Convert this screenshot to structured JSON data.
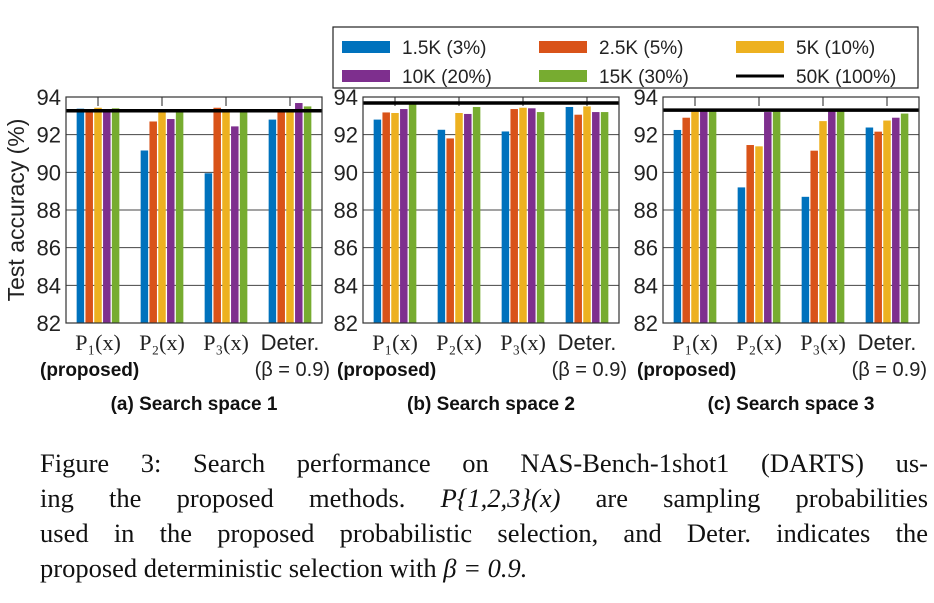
{
  "chart_data": [
    {
      "type": "bar",
      "title": "(a) Search space 1",
      "ylabel": "Test accuracy (%)",
      "ylim": [
        82,
        94
      ],
      "yticks": [
        82,
        84,
        86,
        88,
        90,
        92,
        94
      ],
      "grid": true,
      "categories": [
        "P₁(x)",
        "P₂(x)",
        "P₃(x)",
        "Deter."
      ],
      "category_notes": [
        "(proposed)",
        "",
        "",
        "(β = 0.9)"
      ],
      "series": [
        {
          "name": "1.5K (3%)",
          "values": [
            93.38,
            91.16,
            89.95,
            92.8
          ]
        },
        {
          "name": "2.5K (5%)",
          "values": [
            93.36,
            92.7,
            93.43,
            93.36
          ]
        },
        {
          "name": "5K (10%)",
          "values": [
            93.43,
            93.36,
            93.36,
            93.3
          ]
        },
        {
          "name": "10K (20%)",
          "values": [
            93.36,
            92.83,
            92.44,
            93.68
          ]
        },
        {
          "name": "15K (30%)",
          "values": [
            93.4,
            93.3,
            93.3,
            93.5
          ]
        }
      ],
      "reference_line": {
        "name": "50K (100%)",
        "value": 93.27
      }
    },
    {
      "type": "bar",
      "title": "(b) Search space 2",
      "ylim": [
        82,
        94
      ],
      "yticks": [
        82,
        84,
        86,
        88,
        90,
        92,
        94
      ],
      "grid": true,
      "categories": [
        "P₁(x)",
        "P₂(x)",
        "P₃(x)",
        "Deter."
      ],
      "category_notes": [
        "(proposed)",
        "",
        "",
        "(β = 0.9)"
      ],
      "series": [
        {
          "name": "1.5K (3%)",
          "values": [
            92.8,
            92.26,
            92.17,
            93.47
          ]
        },
        {
          "name": "2.5K (5%)",
          "values": [
            93.18,
            91.8,
            93.36,
            93.06
          ]
        },
        {
          "name": "5K (10%)",
          "values": [
            93.15,
            93.15,
            93.43,
            93.5
          ]
        },
        {
          "name": "10K (20%)",
          "values": [
            93.36,
            93.1,
            93.4,
            93.2
          ]
        },
        {
          "name": "15K (30%)",
          "values": [
            93.7,
            93.47,
            93.2,
            93.2
          ]
        }
      ],
      "reference_line": {
        "name": "50K (100%)",
        "value": 93.68
      }
    },
    {
      "type": "bar",
      "title": "(c) Search space 3",
      "ylim": [
        82,
        94
      ],
      "yticks": [
        82,
        84,
        86,
        88,
        90,
        92,
        94
      ],
      "grid": true,
      "categories": [
        "P₁(x)",
        "P₂(x)",
        "P₃(x)",
        "Deter."
      ],
      "category_notes": [
        "(proposed)",
        "",
        "",
        "(β = 0.9)"
      ],
      "series": [
        {
          "name": "1.5K (3%)",
          "values": [
            92.25,
            89.2,
            88.7,
            92.38
          ]
        },
        {
          "name": "2.5K (5%)",
          "values": [
            92.9,
            91.45,
            91.15,
            92.16
          ]
        },
        {
          "name": "5K (10%)",
          "values": [
            93.27,
            91.38,
            92.72,
            92.75
          ]
        },
        {
          "name": "10K (20%)",
          "values": [
            93.3,
            93.2,
            93.3,
            92.9
          ]
        },
        {
          "name": "15K (30%)",
          "values": [
            93.3,
            93.3,
            93.3,
            93.12
          ]
        }
      ],
      "reference_line": {
        "name": "50K (100%)",
        "value": 93.3
      }
    }
  ],
  "legend": {
    "placement": "top-right",
    "items": [
      {
        "label": "1.5K (3%)",
        "color": "#0072BD",
        "kind": "bar"
      },
      {
        "label": "2.5K (5%)",
        "color": "#D95319",
        "kind": "bar"
      },
      {
        "label": "5K (10%)",
        "color": "#EDB120",
        "kind": "bar"
      },
      {
        "label": "10K (20%)",
        "color": "#7E2F8E",
        "kind": "bar"
      },
      {
        "label": "15K (30%)",
        "color": "#77AC30",
        "kind": "bar"
      },
      {
        "label": "50K (100%)",
        "color": "#000000",
        "kind": "line"
      }
    ]
  },
  "caption": {
    "line1": "Figure 3: Search performance on NAS-Bench-1shot1 (DARTS) us-",
    "line2_a": "ing the proposed methods.",
    "line2_math": "P{1,2,3}(x)",
    "line2_b": "are sampling probabilities",
    "line3": "used in the proposed probabilistic selection, and Deter. indicates the",
    "line4_a": "proposed deterministic selection with",
    "line4_math": "β = 0.9."
  }
}
